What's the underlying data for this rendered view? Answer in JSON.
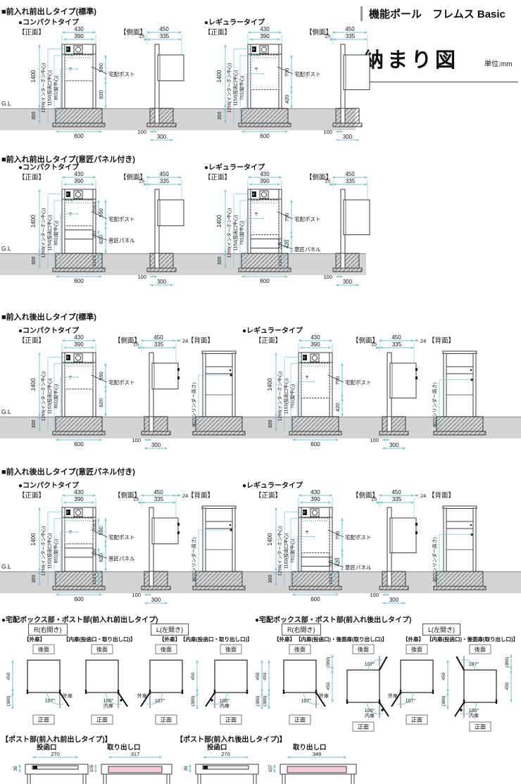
{
  "header": {
    "brand": "機能ポール　フレムス Basic",
    "title": "納まり図",
    "unit": "単位:mm"
  },
  "common": {
    "gl": "G.L",
    "front_label": "【正面】",
    "side_label": "【側面】",
    "rear_label": "【背面】",
    "compact": "●コンパクトタイプ",
    "regular": "●レギュラータイプ",
    "face_rear": "後面",
    "face_front": "正面"
  },
  "shared": {
    "width_outer": "430",
    "width_inner": "390",
    "height_total": "1400",
    "depth_ground": "300",
    "footing_width": "600",
    "side_width": "450",
    "side_front_off": "15",
    "side_box_depth": "335",
    "side_back_off": "24",
    "side_pole_off": "100",
    "side_footing": "300",
    "post_label": "宅配ポスト",
    "panel_label": "意匠パネル"
  },
  "sections": [
    {
      "heading": "■前入れ前出しタイプ(標準)",
      "panel": false,
      "rear": false,
      "compact": {
        "lines": [
          "1296(インターホン中心)",
          "1154(投函口中心)",
          "861(錠中心)"
        ],
        "box_h": "590",
        "below_box": "620"
      },
      "regular": {
        "lines": [
          "1296(インターホン中心)",
          "1154(投函口中心)",
          "761(錠中心)"
        ],
        "box_h": "790",
        "below_box": "420"
      }
    },
    {
      "heading": "■前入れ前出しタイプ(意匠パネル付き)",
      "panel": true,
      "rear": false,
      "compact": {
        "lines": [
          "1296(インターホン中心)",
          "1154(投函口中心)",
          "861(錠中心)"
        ],
        "box_h": "590",
        "below_box": "620",
        "panel_a": "209.5",
        "panel_b": "200",
        "below_gl": "210.5"
      },
      "regular": {
        "lines": [
          "1296(インターホン中心)",
          "1154(投函口中心)",
          "761(錠中心)"
        ],
        "box_h": "790",
        "below_box": "420",
        "panel_a": "209.5",
        "below_gl": "210.5"
      }
    },
    {
      "heading": "■前入れ後出しタイプ(標準)",
      "panel": false,
      "rear": true,
      "compact": {
        "lines": [
          "1296(インターホン中心)",
          "1163(投函口中心)",
          "861(錠中心)"
        ],
        "box_h": "590",
        "below_box": "620",
        "cylinder": "907(シリンダー高さ)"
      },
      "regular": {
        "lines": [
          "1296(インターホン中心)",
          "1163(投函口中心)",
          "761(錠中心)"
        ],
        "box_h": "790",
        "below_box": "420",
        "cylinder": "807(シリンダー高さ)"
      }
    },
    {
      "heading": "■前入れ後出しタイプ(意匠パネル付き)",
      "panel": true,
      "rear": true,
      "compact": {
        "lines": [
          "1296(インターホン中心)",
          "1163(投函口中心)",
          "861(錠中心)"
        ],
        "box_h": "590",
        "below_box": "620",
        "panel_a": "209.5",
        "panel_b": "200",
        "below_gl": "210.5",
        "cylinder": "907(シリンダー高さ)"
      },
      "regular": {
        "lines": [
          "1296(インターホン中心)",
          "1163(投函口中心)",
          "761(錠中心)"
        ],
        "box_h": "790",
        "below_box": "420",
        "panel_a": "209.5",
        "below_gl": "210.5",
        "cylinder": "807(シリンダー高さ)"
      }
    }
  ],
  "doors": [
    {
      "heading": "●宅配ボックス部・ポスト部(前入れ前出しタイプ)",
      "groups": [
        {
          "tag": "R(右開き)",
          "items": [
            {
              "title": "【外扉】",
              "angle": "107°",
              "door": "外扉",
              "hinge": "R",
              "dims": "L",
              "dim_a": "450",
              "dim_b": "(380)"
            },
            {
              "title": "【内扉(投函口・取り出し口)】",
              "angle": "100°",
              "door": "内扉",
              "hinge": "R",
              "knob": true
            }
          ]
        },
        {
          "tag": "L(左開き)",
          "items": [
            {
              "title": "【外扉】",
              "angle": "107°",
              "door": "外扉",
              "hinge": "L",
              "dims": "R",
              "dim_a": "450",
              "dim_b": "(380)"
            },
            {
              "title": "【内扉(投函口・取り出し口)】",
              "angle": "100°",
              "door": "内扉",
              "hinge": "L",
              "knob": true,
              "dims": "R",
              "dim_a": "450",
              "dim_b": "(380)"
            }
          ]
        }
      ]
    },
    {
      "heading": "●宅配ボックス部・ポスト部(前入れ後出しタイプ)",
      "groups": [
        {
          "tag": "R(右開き)",
          "items": [
            {
              "title": "【外扉】",
              "angle": "107°",
              "door": "外扉",
              "hinge": "R",
              "dims": "L",
              "dim_a": "450",
              "dim_b": "(380)"
            },
            {
              "title": "【内扉(投函口)・後面扉(取り出し口)】",
              "angle": "100°",
              "top_angle": "107°",
              "door": "内扉",
              "hinge": "R",
              "knob": true,
              "rear": true,
              "dims": "L",
              "dim_a": "450",
              "dim_b": "(380)"
            }
          ]
        },
        {
          "tag": "L(左開き)",
          "items": [
            {
              "title": "【外扉】",
              "angle": "107°",
              "door": "外扉",
              "hinge": "L",
              "dims": "R",
              "dim_a": "450",
              "dim_b": "(380)"
            },
            {
              "title": "【内扉(投函口)・後面扉(取り出し口)】",
              "angle": "100°",
              "top_angle": "107°",
              "door": "内扉",
              "hinge": "L",
              "knob": true,
              "rear": true,
              "dims": "R",
              "dim_a": "450",
              "dim_b": "(380)"
            }
          ]
        }
      ]
    }
  ],
  "posts": [
    {
      "heading": "【ポスト部(前入れ前出しタイプ)】",
      "items": [
        {
          "label": "投函口",
          "w": "270",
          "h": "39",
          "pink": false
        },
        {
          "label": "取り出し口",
          "w": "317",
          "h": "105",
          "pink": true
        }
      ]
    },
    {
      "heading": "【ポスト部(前入れ後出しタイプ)】",
      "items": [
        {
          "label": "投函口",
          "w": "270",
          "h": "39",
          "pink": false
        },
        {
          "label": "取り出し口",
          "w": "348",
          "h": "107",
          "pink": true
        }
      ]
    }
  ],
  "colors": {
    "dim_line": "#79c5ce",
    "draw_line": "#3c3c3c",
    "ground_band": "#d4d4d4",
    "slot_pink": "#f2cdd3"
  }
}
